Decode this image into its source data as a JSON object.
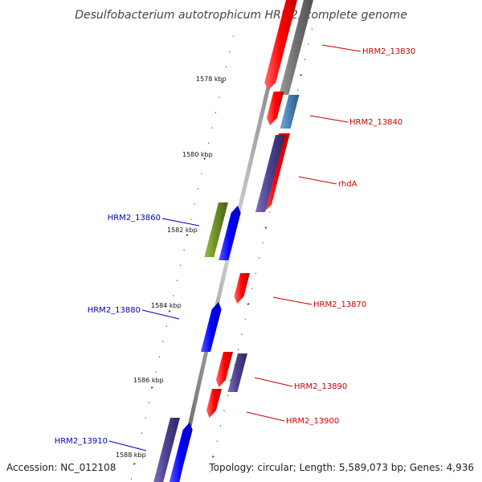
{
  "title": "Desulfobacterium autotrophicum HRM2, complete genome",
  "accession": "Accession: NC_012108",
  "topology": "Topology: circular; Length: 5,589,073 bp; Genes: 4,936",
  "colors": {
    "forward_label": "#cc0000",
    "reverse_label": "#0000bb",
    "red_gene": "#ff0000",
    "blue_gene": "#0000ff",
    "purple_gene": "#4b3f8c",
    "green_gene": "#6b8e23",
    "grey_gene": "#707070",
    "steel_gene": "#4682b4",
    "backbone": "#888888",
    "ticks": "#1a7a1a"
  },
  "kbp_labels": [
    "1578 kbp",
    "1580 kbp",
    "1582 kbp",
    "1584 kbp",
    "1586 kbp",
    "1588 kbp"
  ],
  "gene_labels": [
    {
      "text": "HRM2_13830",
      "strand": "forward"
    },
    {
      "text": "HRM2_13840",
      "strand": "forward"
    },
    {
      "text": "rhdA",
      "strand": "forward"
    },
    {
      "text": "HRM2_13860",
      "strand": "reverse"
    },
    {
      "text": "HRM2_13870",
      "strand": "forward"
    },
    {
      "text": "HRM2_13880",
      "strand": "reverse"
    },
    {
      "text": "HRM2_13890",
      "strand": "forward"
    },
    {
      "text": "HRM2_13900",
      "strand": "forward"
    },
    {
      "text": "HRM2_13910",
      "strand": "reverse"
    }
  ]
}
